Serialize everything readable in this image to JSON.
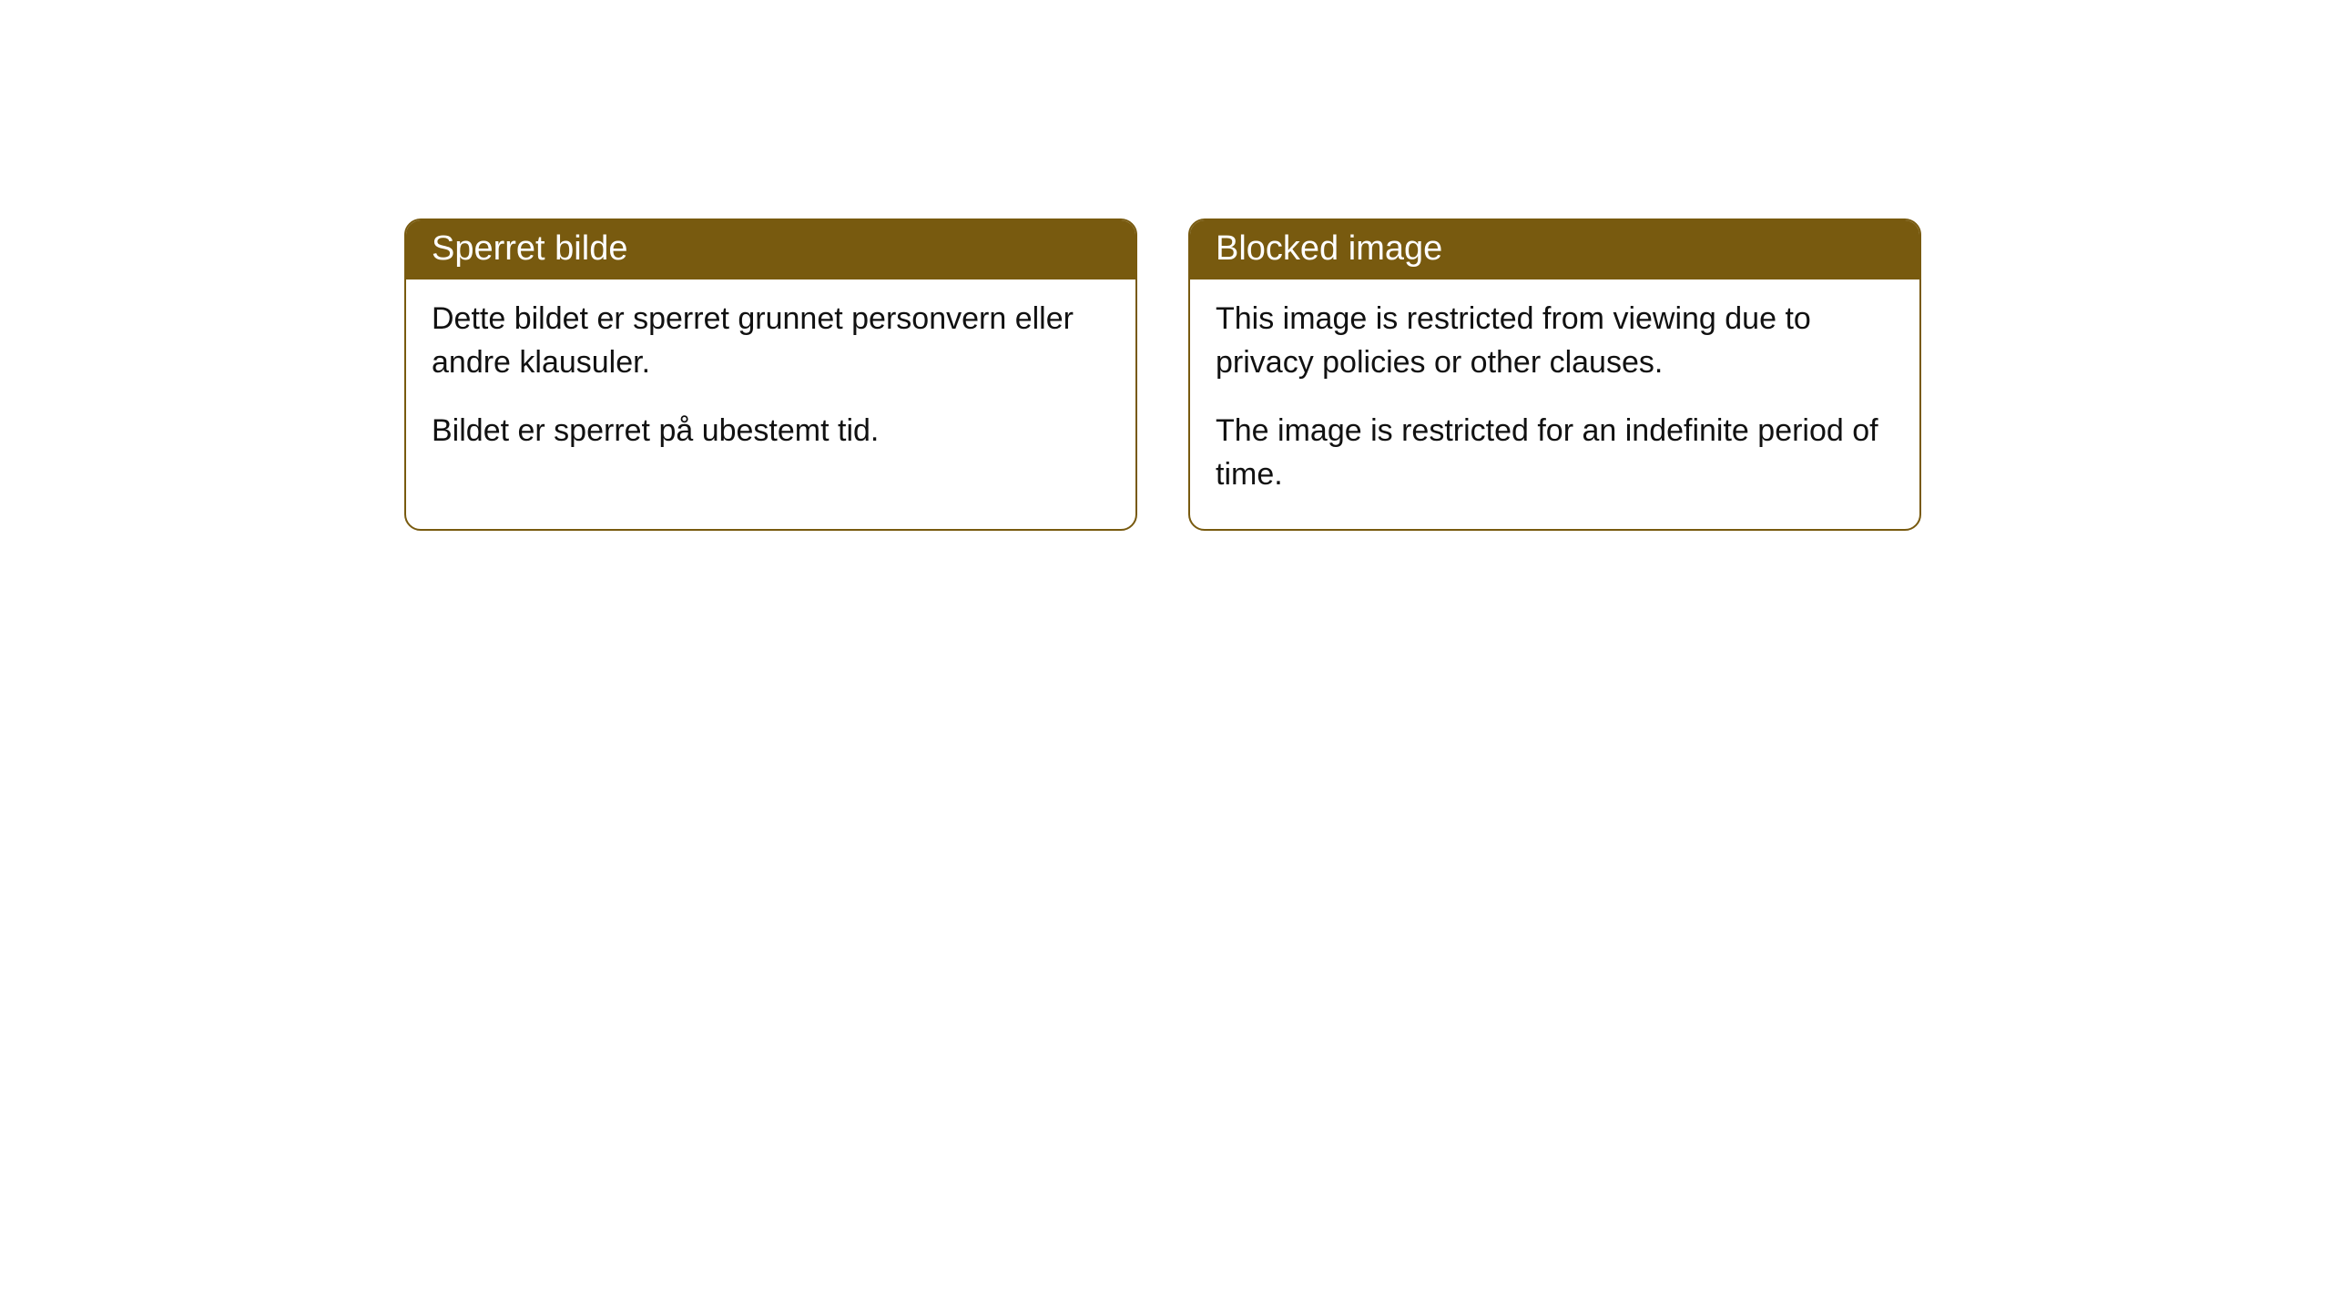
{
  "cards": [
    {
      "title": "Sperret bilde",
      "para1": "Dette bildet er sperret grunnet personvern eller andre klausuler.",
      "para2": "Bildet er sperret på ubestemt tid."
    },
    {
      "title": "Blocked image",
      "para1": "This image is restricted from viewing due to privacy policies or other clauses.",
      "para2": "The image is restricted for an indefinite period of time."
    }
  ],
  "style": {
    "header_background": "#785a0f",
    "header_text_color": "#ffffff",
    "border_color": "#785a0f",
    "body_background": "#ffffff",
    "body_text_color": "#111111",
    "border_radius": 18,
    "title_fontsize": 38,
    "body_fontsize": 34
  }
}
